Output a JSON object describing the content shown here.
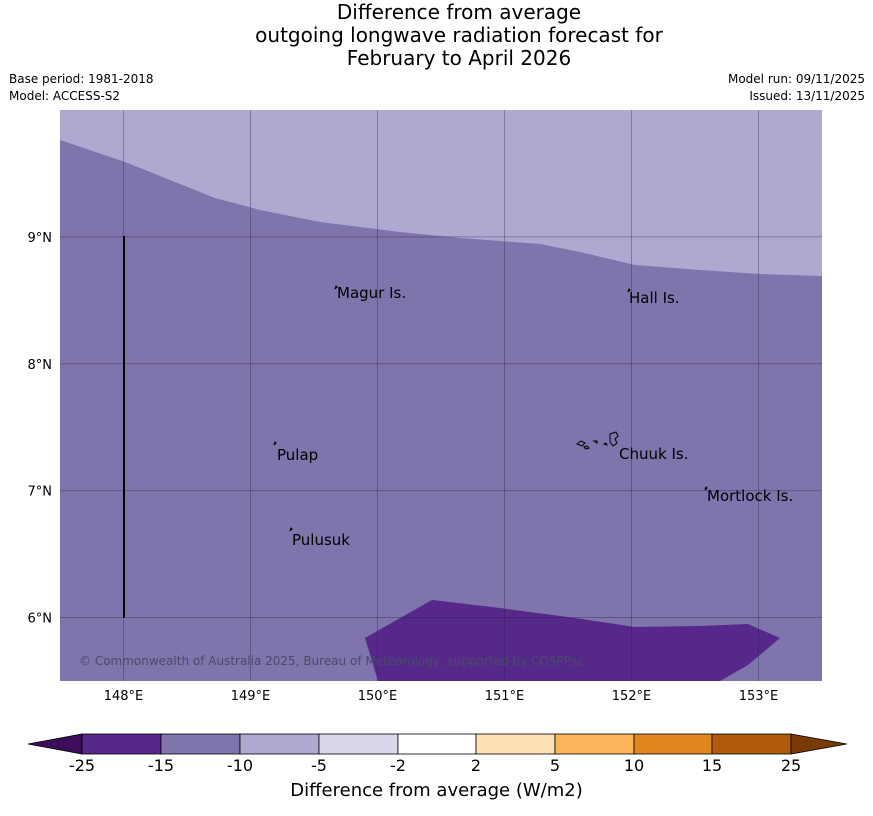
{
  "title": {
    "line1": "Difference from average",
    "line2": "outgoing longwave radiation forecast for",
    "line3": "February to April 2026"
  },
  "meta": {
    "base_period": "Base period: 1981-2018",
    "model": "Model: ACCESS-S2",
    "model_run": "Model run: 09/11/2025",
    "issued": "Issued: 13/11/2025"
  },
  "map": {
    "lon_range": [
      147.5,
      153.5
    ],
    "lat_range": [
      5.5,
      10.0
    ],
    "lon_ticks": [
      "148°E",
      "149°E",
      "150°E",
      "151°E",
      "152°E",
      "153°E"
    ],
    "lat_ticks": [
      "9°N",
      "8°N",
      "7°N",
      "6°N"
    ],
    "places": [
      {
        "name": "Magur Is.",
        "icon": "island-icon"
      },
      {
        "name": "Hall Is.",
        "icon": "island-icon"
      },
      {
        "name": "Pulap",
        "icon": "island-icon"
      },
      {
        "name": "Chuuk Is.",
        "icon": "island-icon"
      },
      {
        "name": "Mortlock Is.",
        "icon": "island-icon"
      },
      {
        "name": "Pulusuk",
        "icon": "island-icon"
      }
    ],
    "copyright": "© Commonwealth of Australia 2025, Bureau of Meteorology, supported by COSPPac",
    "colors": {
      "band_minus10_minus5": "#afa8d1",
      "band_minus15_minus10": "#7f74ab",
      "band_minus25_minus15": "#55288a"
    }
  },
  "colorbar": {
    "ticks": [
      "-25",
      "-15",
      "-10",
      "-5",
      "-2",
      "2",
      "5",
      "10",
      "15",
      "25"
    ],
    "colors": [
      "#3b0d5c",
      "#55288a",
      "#7f74ab",
      "#afa8d1",
      "#d8d8ea",
      "#ffffff",
      "#fde0b4",
      "#fbb55b",
      "#e2851e",
      "#b05a0e",
      "#7a3a06"
    ],
    "label": "Difference from average (W/m2)"
  }
}
